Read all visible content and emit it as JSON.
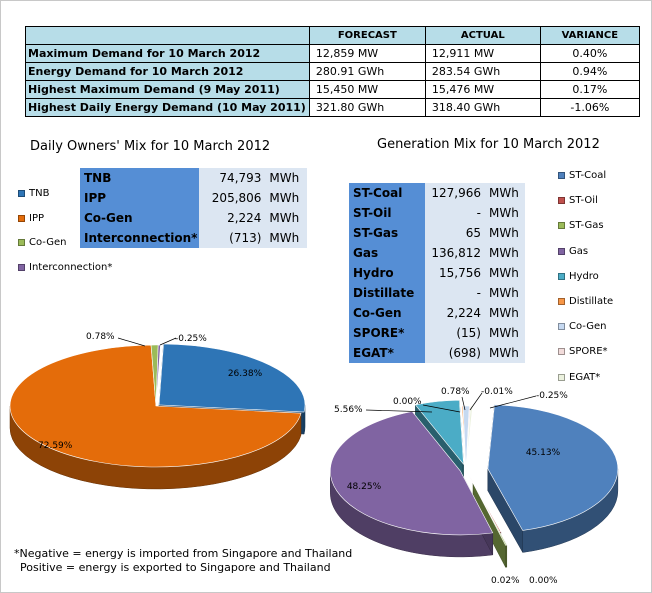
{
  "summary": {
    "headers": [
      "",
      "FORECAST",
      "ACTUAL",
      "VARIANCE"
    ],
    "rows": [
      {
        "label": "Maximum Demand for 10 March 2012",
        "forecast": "12,859  MW",
        "actual": "12,911  MW",
        "variance": "0.40%"
      },
      {
        "label": "Energy Demand for 10 March 2012",
        "forecast": "280.91  GWh",
        "actual": "283.54  GWh",
        "variance": "0.94%"
      },
      {
        "label": "Highest Maximum Demand (9 May 2011)",
        "forecast": "15,450  MW",
        "actual": "15,476  MW",
        "variance": "0.17%"
      },
      {
        "label": "Highest Daily Energy Demand (10 May 2011)",
        "forecast": "321.80  GWh",
        "actual": "318.40  GWh",
        "variance": "-1.06%"
      }
    ]
  },
  "owners": {
    "title": "Daily Owners' Mix for 10 March 2012",
    "table": [
      {
        "name": "TNB",
        "value": "74,793",
        "unit": "MWh"
      },
      {
        "name": "IPP",
        "value": "205,806",
        "unit": "MWh"
      },
      {
        "name": "Co-Gen",
        "value": "2,224",
        "unit": "MWh"
      },
      {
        "name": "Interconnection*",
        "value": "(713)",
        "unit": "MWh"
      }
    ]
  },
  "generation": {
    "title": "Generation Mix for 10 March 2012",
    "table": [
      {
        "name": "ST-Coal",
        "value": "127,966",
        "unit": "MWh"
      },
      {
        "name": "ST-Oil",
        "value": "-",
        "unit": "MWh"
      },
      {
        "name": "ST-Gas",
        "value": "65",
        "unit": "MWh"
      },
      {
        "name": "Gas",
        "value": "136,812",
        "unit": "MWh"
      },
      {
        "name": "Hydro",
        "value": "15,756",
        "unit": "MWh"
      },
      {
        "name": "Distillate",
        "value": "-",
        "unit": "MWh"
      },
      {
        "name": "Co-Gen",
        "value": "2,224",
        "unit": "MWh"
      },
      {
        "name": "SPORE*",
        "value": "(15)",
        "unit": "MWh"
      },
      {
        "name": "EGAT*",
        "value": "(698)",
        "unit": "MWh"
      }
    ]
  },
  "footnote": {
    "line1": "*Negative = energy is imported from Singapore and Thailand",
    "line2": "Positive = energy is exported to Singapore and Thailand"
  },
  "chart_data": [
    {
      "type": "pie",
      "title": "Daily Owners' Mix for 10 March 2012",
      "legend_position": "left",
      "slices": [
        {
          "name": "TNB",
          "value": 26.38,
          "label": "26.38%",
          "color": "#2e75b6"
        },
        {
          "name": "IPP",
          "value": 72.59,
          "label": "72.59%",
          "color": "#e46c0a"
        },
        {
          "name": "Co-Gen",
          "value": 0.78,
          "label": "0.78%",
          "color": "#9bbb59"
        },
        {
          "name": "Interconnection*",
          "value": -0.25,
          "label": "-0.25%",
          "color": "#8064a2"
        }
      ]
    },
    {
      "type": "pie",
      "title": "Generation Mix for 10 March 2012",
      "legend_position": "right",
      "slices": [
        {
          "name": "ST-Coal",
          "value": 45.13,
          "label": "45.13%",
          "color": "#4f81bd"
        },
        {
          "name": "ST-Oil",
          "value": 0.0,
          "label": "0.00%",
          "color": "#c0504d"
        },
        {
          "name": "ST-Gas",
          "value": 0.02,
          "label": "0.02%",
          "color": "#9bbb59"
        },
        {
          "name": "Gas",
          "value": 48.25,
          "label": "48.25%",
          "color": "#8064a2"
        },
        {
          "name": "Hydro",
          "value": 5.56,
          "label": "5.56%",
          "color": "#4bacc6"
        },
        {
          "name": "Distillate",
          "value": 0.0,
          "label": "0.00%",
          "color": "#f79646"
        },
        {
          "name": "Co-Gen",
          "value": 0.78,
          "label": "0.78%",
          "color": "#c6d9f1"
        },
        {
          "name": "SPORE*",
          "value": -0.01,
          "label": "-0.01%",
          "color": "#f2dcdb"
        },
        {
          "name": "EGAT*",
          "value": -0.25,
          "label": "-0.25%",
          "color": "#ebf1de"
        }
      ]
    }
  ]
}
